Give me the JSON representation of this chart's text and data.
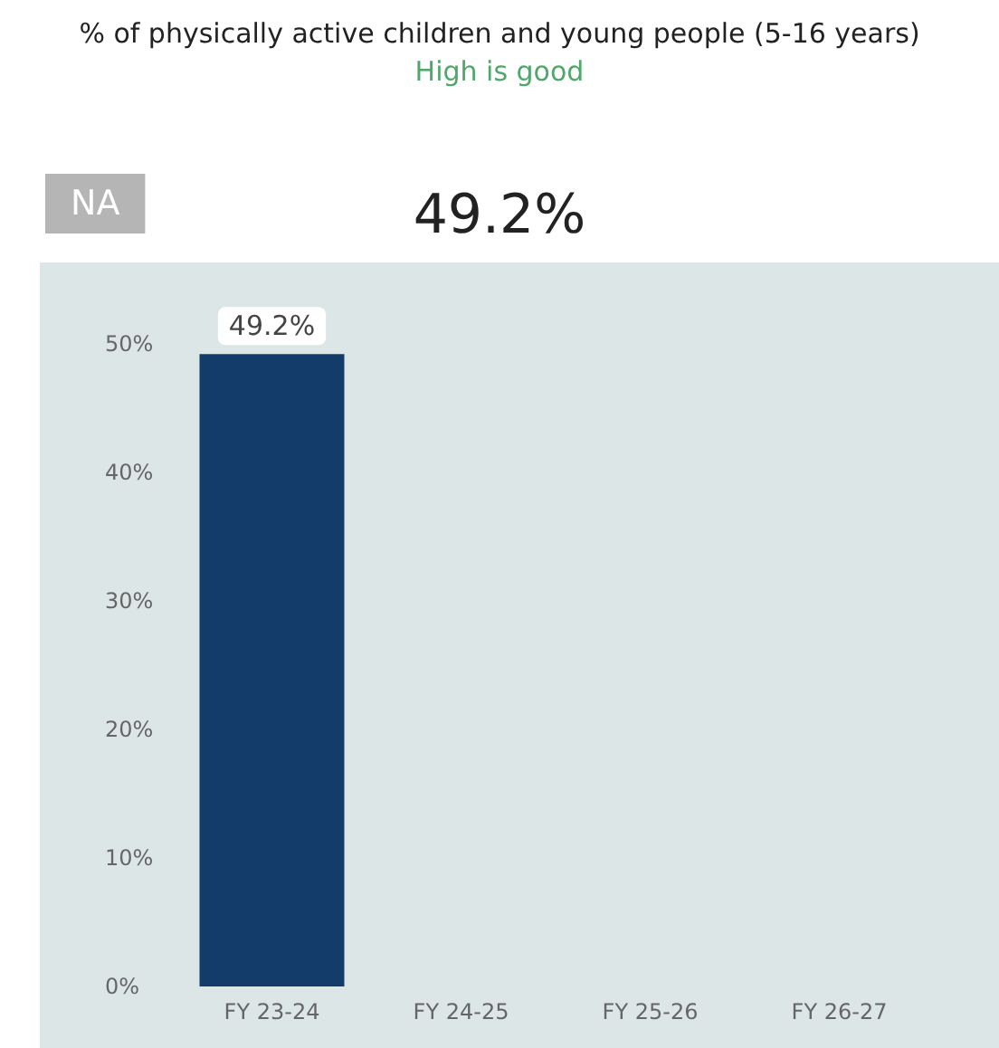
{
  "chart_data": {
    "type": "bar",
    "title": "% of physically active children and young people (5-16 years)",
    "subtitle": "High is good",
    "annotations": [
      "NA",
      "49.2%"
    ],
    "categories": [
      "FY 23-24",
      "FY 24-25",
      "FY 25-26",
      "FY 26-27"
    ],
    "values": [
      49.2,
      null,
      null,
      null
    ],
    "color": "#133c6b",
    "value_labels": [
      "49.2%",
      null,
      null,
      null
    ],
    "ylim": [
      0,
      50
    ],
    "yticks": [
      {
        "value": 0,
        "label": "0%"
      },
      {
        "value": 10,
        "label": "10%"
      },
      {
        "value": 20,
        "label": "20%"
      },
      {
        "value": 30,
        "label": "30%"
      },
      {
        "value": 40,
        "label": "40%"
      },
      {
        "value": 50,
        "label": "50%"
      }
    ],
    "grid": false
  }
}
